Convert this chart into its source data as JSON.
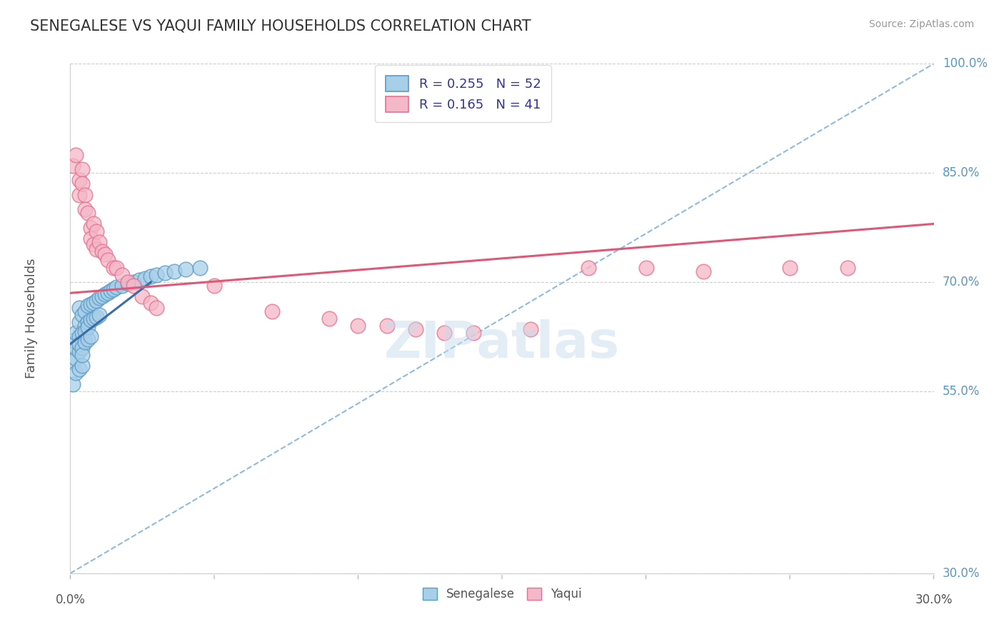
{
  "title": "SENEGALESE VS YAQUI FAMILY HOUSEHOLDS CORRELATION CHART",
  "source": "Source: ZipAtlas.com",
  "ylabel": "Family Households",
  "xlim": [
    0.0,
    0.3
  ],
  "ylim": [
    0.3,
    1.0
  ],
  "ytick_labels": [
    "100.0%",
    "85.0%",
    "70.0%",
    "55.0%",
    "30.0%"
  ],
  "ytick_vals": [
    1.0,
    0.85,
    0.7,
    0.55,
    0.3
  ],
  "xtick_vals": [
    0.0,
    0.05,
    0.1,
    0.15,
    0.2,
    0.25,
    0.3
  ],
  "xtick_edge_labels": [
    "0.0%",
    "30.0%"
  ],
  "xtick_edge_vals": [
    0.0,
    0.3
  ],
  "color_blue": "#a8cfe8",
  "color_pink": "#f4b8c8",
  "color_blue_edge": "#5b9bc8",
  "color_pink_edge": "#e87090",
  "color_blue_line": "#3a6ea8",
  "color_pink_line": "#e05878",
  "color_dashed": "#7ab0d8",
  "watermark": "ZIPatlas",
  "senegalese_x": [
    0.001,
    0.001,
    0.001,
    0.002,
    0.002,
    0.002,
    0.002,
    0.003,
    0.003,
    0.003,
    0.003,
    0.003,
    0.003,
    0.004,
    0.004,
    0.004,
    0.004,
    0.004,
    0.005,
    0.005,
    0.005,
    0.005,
    0.006,
    0.006,
    0.006,
    0.006,
    0.007,
    0.007,
    0.007,
    0.008,
    0.008,
    0.009,
    0.009,
    0.01,
    0.01,
    0.011,
    0.012,
    0.013,
    0.014,
    0.015,
    0.016,
    0.018,
    0.02,
    0.022,
    0.024,
    0.026,
    0.028,
    0.03,
    0.033,
    0.036,
    0.04,
    0.045
  ],
  "senegalese_y": [
    0.63,
    0.615,
    0.595,
    0.64,
    0.625,
    0.61,
    0.6,
    0.65,
    0.638,
    0.622,
    0.61,
    0.598,
    0.585,
    0.66,
    0.648,
    0.635,
    0.622,
    0.608,
    0.665,
    0.652,
    0.64,
    0.628,
    0.67,
    0.658,
    0.645,
    0.632,
    0.672,
    0.66,
    0.648,
    0.675,
    0.662,
    0.678,
    0.665,
    0.68,
    0.668,
    0.682,
    0.685,
    0.688,
    0.69,
    0.692,
    0.695,
    0.698,
    0.7,
    0.703,
    0.705,
    0.708,
    0.71,
    0.712,
    0.715,
    0.718,
    0.72,
    0.725
  ],
  "senegalese_y_actual": [
    0.59,
    0.56,
    0.62,
    0.595,
    0.63,
    0.61,
    0.575,
    0.645,
    0.625,
    0.665,
    0.605,
    0.58,
    0.615,
    0.655,
    0.63,
    0.61,
    0.585,
    0.6,
    0.66,
    0.64,
    0.618,
    0.632,
    0.668,
    0.645,
    0.622,
    0.638,
    0.67,
    0.648,
    0.625,
    0.672,
    0.65,
    0.675,
    0.652,
    0.678,
    0.655,
    0.68,
    0.683,
    0.685,
    0.688,
    0.69,
    0.693,
    0.695,
    0.698,
    0.7,
    0.703,
    0.705,
    0.708,
    0.71,
    0.713,
    0.715,
    0.718,
    0.72
  ],
  "blue_line_x": [
    0.0,
    0.028
  ],
  "blue_line_y": [
    0.615,
    0.7
  ],
  "yaqui_x": [
    0.001,
    0.002,
    0.003,
    0.003,
    0.004,
    0.004,
    0.005,
    0.005,
    0.006,
    0.007,
    0.007,
    0.008,
    0.008,
    0.009,
    0.009,
    0.01,
    0.011,
    0.012,
    0.013,
    0.015,
    0.016,
    0.018,
    0.02,
    0.022,
    0.025,
    0.028,
    0.03,
    0.05,
    0.07,
    0.09,
    0.1,
    0.11,
    0.12,
    0.13,
    0.14,
    0.16,
    0.18,
    0.2,
    0.22,
    0.25,
    0.27
  ],
  "yaqui_y": [
    0.86,
    0.875,
    0.84,
    0.82,
    0.855,
    0.835,
    0.82,
    0.8,
    0.795,
    0.775,
    0.76,
    0.78,
    0.752,
    0.77,
    0.745,
    0.755,
    0.742,
    0.738,
    0.73,
    0.72,
    0.72,
    0.71,
    0.7,
    0.695,
    0.68,
    0.672,
    0.665,
    0.695,
    0.66,
    0.65,
    0.64,
    0.64,
    0.635,
    0.63,
    0.63,
    0.635,
    0.72,
    0.72,
    0.715,
    0.72,
    0.72
  ],
  "pink_line_x": [
    0.0,
    0.3
  ],
  "pink_line_y": [
    0.685,
    0.78
  ],
  "diag_line_x": [
    0.0,
    0.3
  ],
  "diag_line_y": [
    0.3,
    1.0
  ]
}
